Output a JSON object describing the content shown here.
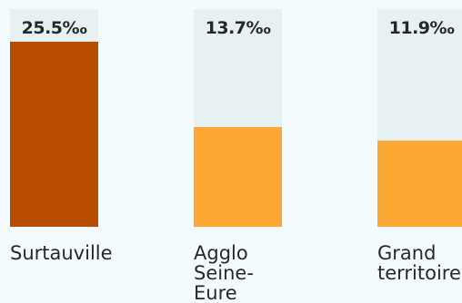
{
  "chart_data": {
    "type": "bar",
    "categories": [
      "Surtauville",
      "Agglo Seine-Eure",
      "Grand territoire"
    ],
    "category_lines": [
      [
        "Surtauville"
      ],
      [
        "Agglo",
        "Seine-",
        "Eure"
      ],
      [
        "Grand",
        "territoire"
      ]
    ],
    "values": [
      25.5,
      13.7,
      11.9
    ],
    "value_labels": [
      "25.5‰",
      "13.7‰",
      "11.9‰"
    ],
    "unit": "‰",
    "ylim": [
      0,
      30
    ],
    "colors": [
      "#b84d00",
      "#fca834",
      "#fca834"
    ],
    "track_color": "#e8f1f2",
    "grid": false
  }
}
